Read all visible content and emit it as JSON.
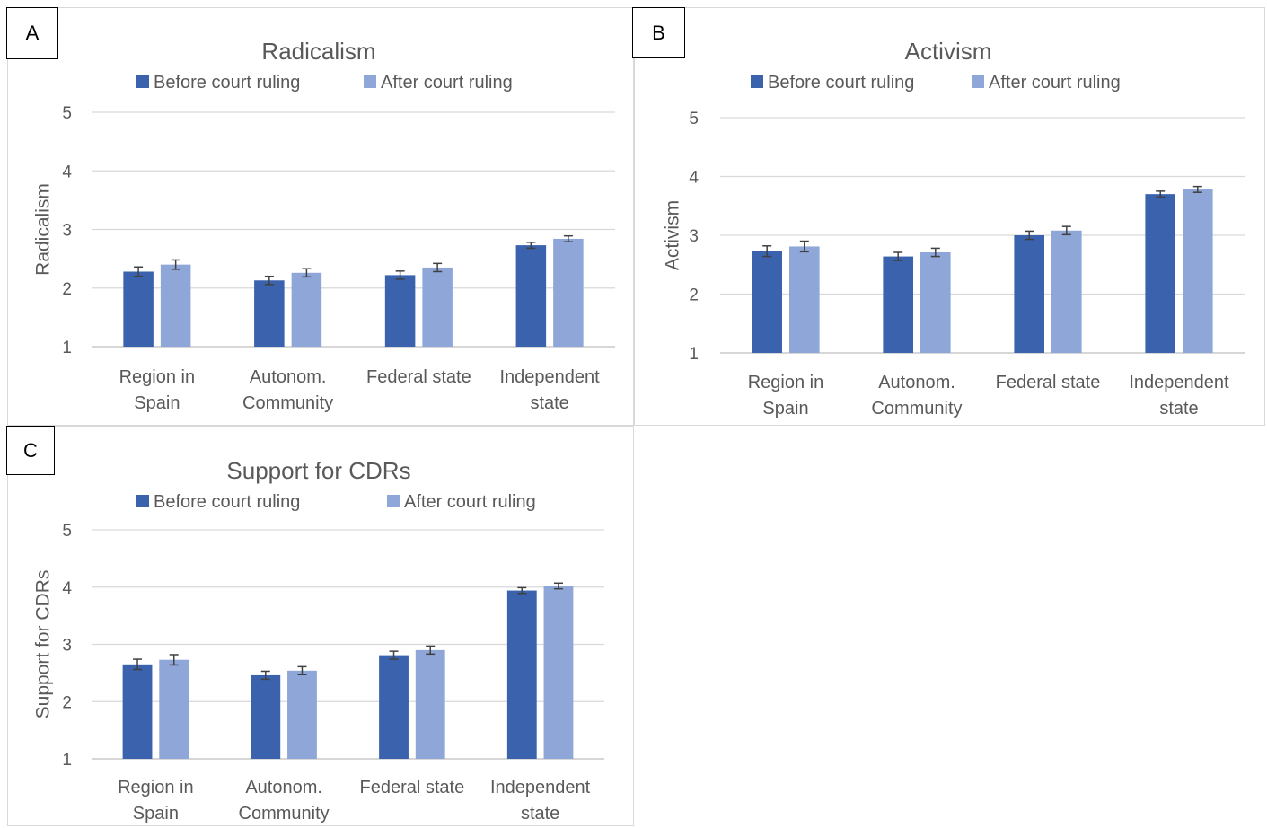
{
  "chart_data": [
    {
      "panel": "A",
      "type": "bar",
      "title": "Radicalism",
      "ylabel": "Radicalism",
      "xlabel": "",
      "ylim": [
        1,
        5
      ],
      "yticks": [
        1,
        2,
        3,
        4,
        5
      ],
      "categories": [
        [
          "Region in",
          "Spain"
        ],
        [
          "Autonom.",
          "Community"
        ],
        [
          "Federal state"
        ],
        [
          "Independent",
          "state"
        ]
      ],
      "series": [
        {
          "name": "Before court ruling",
          "color": "#3a62ad",
          "values": [
            2.28,
            2.13,
            2.22,
            2.73
          ],
          "errors": [
            0.08,
            0.07,
            0.07,
            0.05
          ]
        },
        {
          "name": "After court ruling",
          "color": "#8fa6d8",
          "values": [
            2.4,
            2.26,
            2.35,
            2.84
          ],
          "errors": [
            0.08,
            0.07,
            0.07,
            0.05
          ]
        }
      ],
      "legend_position": "top",
      "grid": true
    },
    {
      "panel": "B",
      "type": "bar",
      "title": "Activism",
      "ylabel": "Activism",
      "xlabel": "",
      "ylim": [
        1,
        5
      ],
      "yticks": [
        1,
        2,
        3,
        4,
        5
      ],
      "categories": [
        [
          "Region in",
          "Spain"
        ],
        [
          "Autonom.",
          "Community"
        ],
        [
          "Federal state"
        ],
        [
          "Independent",
          "state"
        ]
      ],
      "series": [
        {
          "name": "Before court ruling",
          "color": "#3a62ad",
          "values": [
            2.73,
            2.64,
            3.0,
            3.7
          ],
          "errors": [
            0.09,
            0.07,
            0.07,
            0.05
          ]
        },
        {
          "name": "After court ruling",
          "color": "#8fa6d8",
          "values": [
            2.81,
            2.71,
            3.08,
            3.78
          ],
          "errors": [
            0.09,
            0.07,
            0.07,
            0.05
          ]
        }
      ],
      "legend_position": "top",
      "grid": true
    },
    {
      "panel": "C",
      "type": "bar",
      "title": "Support for CDRs",
      "ylabel": "Support for CDRs",
      "xlabel": "",
      "ylim": [
        1,
        5
      ],
      "yticks": [
        1,
        2,
        3,
        4,
        5
      ],
      "categories": [
        [
          "Region in",
          "Spain"
        ],
        [
          "Autonom.",
          "Community"
        ],
        [
          "Federal state"
        ],
        [
          "Independent",
          "state"
        ]
      ],
      "series": [
        {
          "name": "Before court ruling",
          "color": "#3a62ad",
          "values": [
            2.65,
            2.46,
            2.81,
            3.94
          ],
          "errors": [
            0.09,
            0.07,
            0.07,
            0.05
          ]
        },
        {
          "name": "After court ruling",
          "color": "#8fa6d8",
          "values": [
            2.73,
            2.54,
            2.9,
            4.02
          ],
          "errors": [
            0.09,
            0.07,
            0.07,
            0.05
          ]
        }
      ],
      "legend_position": "top",
      "grid": true
    }
  ]
}
